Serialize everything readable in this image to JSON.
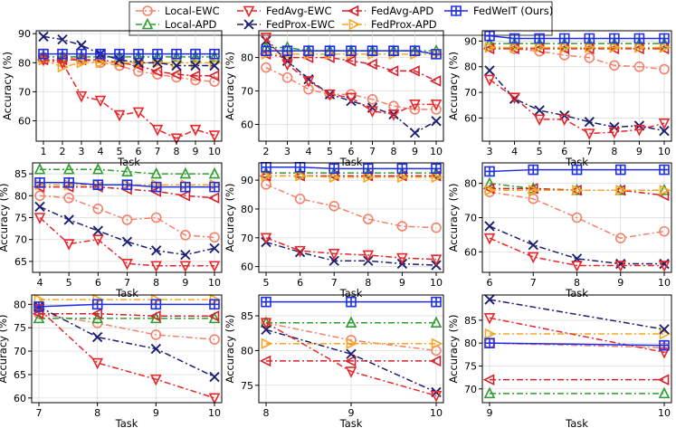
{
  "chart_data": [
    {
      "type": "line",
      "x": [
        1,
        2,
        3,
        4,
        5,
        6,
        7,
        8,
        9,
        10
      ],
      "xlabel": "Task",
      "ylabel": "Accuracy (%)",
      "ylim": [
        53,
        91
      ],
      "yticks": [
        60,
        70,
        80,
        90
      ],
      "series": [
        {
          "name": "Local-EWC",
          "values": [
            82,
            82,
            81,
            80,
            79,
            77,
            76,
            75,
            74,
            73.5
          ]
        },
        {
          "name": "Local-APD",
          "values": [
            82,
            82,
            82,
            82,
            82,
            82,
            82,
            82,
            82,
            82
          ]
        },
        {
          "name": "FedAvg-EWC",
          "values": [
            81,
            80,
            68.5,
            67,
            62,
            63,
            57,
            54,
            57,
            55
          ]
        },
        {
          "name": "FedProx-EWC",
          "values": [
            89,
            88,
            86,
            83,
            81,
            80,
            80,
            79,
            79,
            79
          ]
        },
        {
          "name": "FedAvg-APD",
          "values": [
            81,
            81,
            81,
            81,
            80,
            79,
            77,
            76,
            75.5,
            75.5
          ]
        },
        {
          "name": "FedProx-APD",
          "values": [
            81,
            78.5,
            80,
            80,
            80,
            80,
            80,
            80,
            80,
            80
          ]
        },
        {
          "name": "FedWeIT (Ours)",
          "values": [
            83,
            83,
            83,
            83,
            83,
            83,
            83,
            83,
            83,
            83
          ]
        }
      ]
    },
    {
      "type": "line",
      "x": [
        2,
        3,
        4,
        5,
        6,
        7,
        8,
        9,
        10
      ],
      "xlabel": "Task",
      "ylabel": "Accuracy (%)",
      "ylim": [
        55,
        88
      ],
      "yticks": [
        60,
        70,
        80
      ],
      "series": [
        {
          "name": "Local-EWC",
          "values": [
            77,
            74,
            70.5,
            69,
            69,
            67.5,
            65.5,
            64.5,
            64.5
          ]
        },
        {
          "name": "Local-APD",
          "values": [
            83,
            83,
            82,
            82,
            82,
            82,
            82,
            82,
            82
          ]
        },
        {
          "name": "FedAvg-EWC",
          "values": [
            86,
            78,
            73,
            69,
            68,
            64,
            63,
            66,
            66
          ]
        },
        {
          "name": "FedProx-EWC",
          "values": [
            85,
            79,
            73.5,
            69,
            67,
            65,
            63,
            57.5,
            61
          ]
        },
        {
          "name": "FedAvg-APD",
          "values": [
            81,
            80,
            80,
            80,
            79,
            78,
            76,
            76,
            73
          ]
        },
        {
          "name": "FedProx-APD",
          "values": [
            81,
            81,
            81,
            81,
            81,
            81,
            81,
            81,
            81
          ]
        },
        {
          "name": "FedWeIT (Ours)",
          "values": [
            82,
            82,
            82,
            82,
            82,
            82,
            82,
            82,
            81
          ]
        }
      ]
    },
    {
      "type": "line",
      "x": [
        3,
        4,
        5,
        6,
        7,
        8,
        9,
        10
      ],
      "xlabel": "Task",
      "ylabel": "Accuracy (%)",
      "ylim": [
        51,
        94
      ],
      "yticks": [
        60,
        70,
        80,
        90
      ],
      "series": [
        {
          "name": "Local-EWC",
          "values": [
            88,
            87,
            86,
            84.5,
            83.5,
            80.5,
            80,
            79
          ]
        },
        {
          "name": "Local-APD",
          "values": [
            89,
            89,
            89,
            89,
            89,
            89,
            89,
            89
          ]
        },
        {
          "name": "FedAvg-EWC",
          "values": [
            75,
            68,
            59.5,
            59.5,
            54,
            54.5,
            55.5,
            58
          ]
        },
        {
          "name": "FedProx-EWC",
          "values": [
            78.5,
            67.5,
            63,
            61,
            58.5,
            56.5,
            57,
            55
          ]
        },
        {
          "name": "FedAvg-APD",
          "values": [
            87,
            87,
            87,
            87,
            87,
            87,
            87,
            87
          ]
        },
        {
          "name": "FedProx-APD",
          "values": [
            87.5,
            87.5,
            87.5,
            87.5,
            87.5,
            87.5,
            87.5,
            87.5
          ]
        },
        {
          "name": "FedWeIT (Ours)",
          "values": [
            92,
            91,
            91,
            91,
            91,
            91,
            91,
            91
          ]
        }
      ]
    },
    {
      "type": "line",
      "x": [
        4,
        5,
        6,
        7,
        8,
        9,
        10
      ],
      "xlabel": "Task",
      "ylabel": "Accuracy (%)",
      "ylim": [
        62.5,
        87.5
      ],
      "yticks": [
        65,
        70,
        75,
        80,
        85
      ],
      "series": [
        {
          "name": "Local-EWC",
          "values": [
            80,
            79.5,
            77,
            74.5,
            75,
            71,
            70.5
          ]
        },
        {
          "name": "Local-APD",
          "values": [
            86,
            86,
            86,
            85.5,
            85,
            85,
            85
          ]
        },
        {
          "name": "FedAvg-EWC",
          "values": [
            75,
            69,
            70,
            64.5,
            64,
            64,
            64
          ]
        },
        {
          "name": "FedProx-EWC",
          "values": [
            77.5,
            74.5,
            72,
            69.5,
            67.5,
            66.5,
            68
          ]
        },
        {
          "name": "FedAvg-APD",
          "values": [
            82,
            82,
            82,
            81.5,
            81,
            80,
            79.5
          ]
        },
        {
          "name": "FedProx-APD",
          "values": [
            82.5,
            82.5,
            82.5,
            82.5,
            82.5,
            82.5,
            82.5
          ]
        },
        {
          "name": "FedWeIT (Ours)",
          "values": [
            83,
            83,
            82.5,
            82.5,
            82,
            82,
            82
          ]
        }
      ]
    },
    {
      "type": "line",
      "x": [
        5,
        6,
        7,
        8,
        9,
        10
      ],
      "xlabel": "Task",
      "ylabel": "Accuracy (%)",
      "ylim": [
        58,
        96
      ],
      "yticks": [
        60,
        70,
        80,
        90
      ],
      "series": [
        {
          "name": "Local-EWC",
          "values": [
            88.5,
            83.5,
            81,
            76.5,
            74,
            73.5
          ]
        },
        {
          "name": "Local-APD",
          "values": [
            92.5,
            92.5,
            92.5,
            92.5,
            92.5,
            92.5
          ]
        },
        {
          "name": "FedAvg-EWC",
          "values": [
            70,
            65.5,
            64.5,
            64,
            63,
            62.5
          ]
        },
        {
          "name": "FedProx-EWC",
          "values": [
            68.5,
            65,
            62,
            62,
            61,
            60.5
          ]
        },
        {
          "name": "FedAvg-APD",
          "values": [
            91.5,
            91.5,
            91.5,
            91.5,
            91.5,
            91.5
          ]
        },
        {
          "name": "FedProx-APD",
          "values": [
            91.5,
            91.5,
            91,
            91,
            91,
            91
          ]
        },
        {
          "name": "FedWeIT (Ours)",
          "values": [
            94.5,
            94.5,
            94,
            94,
            94,
            94
          ]
        }
      ]
    },
    {
      "type": "line",
      "x": [
        6,
        7,
        8,
        9,
        10
      ],
      "xlabel": "Task",
      "ylabel": "Accuracy (%)",
      "ylim": [
        54,
        86
      ],
      "yticks": [
        60,
        70,
        80
      ],
      "series": [
        {
          "name": "Local-EWC",
          "values": [
            77.5,
            75.5,
            70,
            64,
            66
          ]
        },
        {
          "name": "Local-APD",
          "values": [
            80,
            78.5,
            78,
            78,
            78
          ]
        },
        {
          "name": "FedAvg-EWC",
          "values": [
            64,
            58.5,
            56,
            56,
            56
          ]
        },
        {
          "name": "FedProx-EWC",
          "values": [
            67.5,
            62,
            58,
            56.5,
            56.5
          ]
        },
        {
          "name": "FedAvg-APD",
          "values": [
            78.5,
            78.5,
            78,
            78,
            76.5
          ]
        },
        {
          "name": "FedProx-APD",
          "values": [
            78,
            78,
            78,
            78,
            78
          ]
        },
        {
          "name": "FedWeIT (Ours)",
          "values": [
            83.5,
            84,
            84,
            84,
            84
          ]
        }
      ]
    },
    {
      "type": "line",
      "x": [
        7,
        8,
        9,
        10
      ],
      "xlabel": "Task",
      "ylabel": "Accuracy (%)",
      "ylim": [
        59,
        82
      ],
      "yticks": [
        60,
        65,
        70,
        75,
        80
      ],
      "series": [
        {
          "name": "Local-EWC",
          "values": [
            78,
            76,
            73.5,
            72.5
          ]
        },
        {
          "name": "Local-APD",
          "values": [
            77,
            77,
            77,
            77
          ]
        },
        {
          "name": "FedAvg-EWC",
          "values": [
            79,
            67.5,
            64,
            60
          ]
        },
        {
          "name": "FedProx-EWC",
          "values": [
            79.5,
            73,
            70.5,
            64.5
          ]
        },
        {
          "name": "FedAvg-APD",
          "values": [
            78,
            78,
            77.5,
            77.5
          ]
        },
        {
          "name": "FedProx-APD",
          "values": [
            81,
            81,
            81,
            81
          ]
        },
        {
          "name": "FedWeIT (Ours)",
          "values": [
            79.5,
            80,
            80,
            80
          ]
        }
      ]
    },
    {
      "type": "line",
      "x": [
        8,
        9,
        10
      ],
      "xlabel": "Task",
      "ylabel": "Accuracy (%)",
      "ylim": [
        72.5,
        88
      ],
      "yticks": [
        75,
        80,
        85
      ],
      "series": [
        {
          "name": "Local-EWC",
          "values": [
            84,
            81.5,
            80
          ]
        },
        {
          "name": "Local-APD",
          "values": [
            84,
            84,
            84
          ]
        },
        {
          "name": "FedAvg-EWC",
          "values": [
            84,
            77,
            73.5
          ]
        },
        {
          "name": "FedProx-EWC",
          "values": [
            83,
            79.5,
            74
          ]
        },
        {
          "name": "FedAvg-APD",
          "values": [
            78.5,
            78.5,
            78.5
          ]
        },
        {
          "name": "FedProx-APD",
          "values": [
            81,
            81,
            81
          ]
        },
        {
          "name": "FedWeIT (Ours)",
          "values": [
            87,
            87,
            87
          ]
        }
      ]
    },
    {
      "type": "line",
      "x": [
        9,
        10
      ],
      "xlabel": "Task",
      "ylabel": "Accuracy (%)",
      "ylim": [
        67,
        90.5
      ],
      "yticks": [
        70,
        75,
        80,
        85
      ],
      "series": [
        {
          "name": "Local-EWC",
          "values": [
            80,
            79
          ]
        },
        {
          "name": "Local-APD",
          "values": [
            69,
            69
          ]
        },
        {
          "name": "FedAvg-EWC",
          "values": [
            85.5,
            78
          ]
        },
        {
          "name": "FedProx-EWC",
          "values": [
            89.5,
            83
          ]
        },
        {
          "name": "FedAvg-APD",
          "values": [
            72,
            72
          ]
        },
        {
          "name": "FedProx-APD",
          "values": [
            82,
            82
          ]
        },
        {
          "name": "FedWeIT (Ours)",
          "values": [
            80,
            79.5
          ]
        }
      ]
    }
  ],
  "legend": [
    {
      "name": "Local-EWC",
      "color": "#f4826b",
      "marker": "circle",
      "dash": "dashdot"
    },
    {
      "name": "Local-APD",
      "color": "#2e9e2e",
      "marker": "triangle-up",
      "dash": "dashdot"
    },
    {
      "name": "FedAvg-EWC",
      "color": "#e8262a",
      "marker": "triangle-down",
      "dash": "dashdot"
    },
    {
      "name": "FedProx-EWC",
      "color": "#1d1f70",
      "marker": "x",
      "dash": "dashdot"
    },
    {
      "name": "FedAvg-APD",
      "color": "#d6202b",
      "marker": "triangle-left",
      "dash": "dashdot"
    },
    {
      "name": "FedProx-APD",
      "color": "#f5a623",
      "marker": "triangle-right",
      "dash": "dashdot"
    },
    {
      "name": "FedWeIT (Ours)",
      "color": "#1f2ee6",
      "marker": "plus-square",
      "dash": "solid"
    }
  ]
}
